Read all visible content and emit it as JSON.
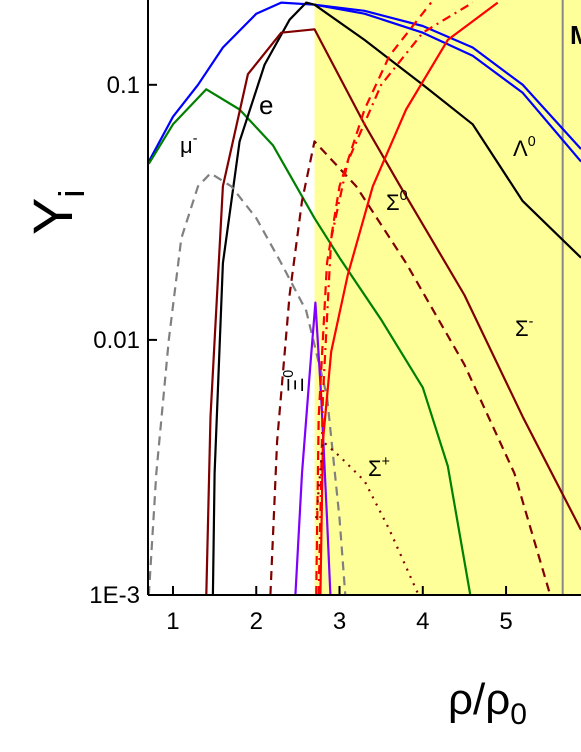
{
  "chart_data": {
    "type": "line",
    "log_y": true,
    "xlabel": "ρ/ρ",
    "xlabel_sub": "0",
    "ylabel": "Y",
    "ylabel_sub": "i",
    "xlim": [
      0.7,
      5.9
    ],
    "ylim": [
      0.001,
      0.215
    ],
    "xticks": [
      1,
      2,
      3,
      4,
      5
    ],
    "yticks": [
      0.1,
      0.01,
      {
        "value": 0.001,
        "label": "1E-3"
      }
    ],
    "shade_x": 2.7,
    "shade_color": "#ffff99",
    "vline_x": 5.68,
    "vline_color": "#888888",
    "series": [
      {
        "color": "#0000ff",
        "dash": "solid",
        "x": [
          0.71,
          1.0,
          1.3,
          1.6,
          2.0,
          2.3,
          2.7,
          3.3,
          4.0,
          4.6,
          5.2,
          5.9
        ],
        "values": [
          0.05,
          0.075,
          0.1,
          0.14,
          0.19,
          0.21,
          0.206,
          0.195,
          0.17,
          0.14,
          0.1,
          0.056
        ]
      },
      {
        "color": "#0000ff",
        "dash": "solid",
        "x": [
          2.7,
          3.3,
          4.0,
          4.6,
          5.2,
          5.9
        ],
        "values": [
          0.206,
          0.19,
          0.16,
          0.13,
          0.093,
          0.05
        ]
      },
      {
        "color": "#008000",
        "dash": "solid",
        "x": [
          0.71,
          1.0,
          1.4,
          1.8,
          2.2,
          2.7,
          3.0,
          3.5,
          4.0,
          4.3,
          4.57
        ],
        "values": [
          0.049,
          0.07,
          0.096,
          0.08,
          0.058,
          0.03,
          0.021,
          0.012,
          0.0065,
          0.0032,
          0.001
        ]
      },
      {
        "color": "#000000",
        "dash": "solid",
        "x": [
          1.48,
          1.5,
          1.6,
          1.8,
          2.1,
          2.4,
          2.6,
          2.7,
          3.3,
          4.0,
          4.6,
          5.2,
          5.9
        ],
        "values": [
          0.001,
          0.003,
          0.02,
          0.06,
          0.12,
          0.18,
          0.21,
          0.206,
          0.15,
          0.1,
          0.07,
          0.035,
          0.021
        ]
      },
      {
        "color": "#800000",
        "dash": "solid",
        "x": [
          1.4,
          1.45,
          1.6,
          1.9,
          2.3,
          2.7,
          3.3,
          3.73,
          4.5,
          5.2,
          5.9
        ],
        "values": [
          0.001,
          0.005,
          0.04,
          0.11,
          0.16,
          0.165,
          0.07,
          0.04,
          0.015,
          0.005,
          0.0018
        ]
      },
      {
        "color": "#800000",
        "dash": "dashed",
        "x": [
          2.17,
          2.25,
          2.4,
          2.55,
          2.7,
          3.2,
          3.8,
          4.5,
          5.1,
          5.53
        ],
        "values": [
          0.001,
          0.004,
          0.015,
          0.035,
          0.06,
          0.04,
          0.02,
          0.008,
          0.003,
          0.001
        ]
      },
      {
        "color": "#808080",
        "dash": "dashed",
        "x": [
          0.71,
          0.8,
          0.95,
          1.1,
          1.3,
          1.45,
          1.7,
          2.0,
          2.3,
          2.6,
          2.85,
          3.0,
          3.07
        ],
        "values": [
          0.001,
          0.003,
          0.01,
          0.025,
          0.04,
          0.045,
          0.04,
          0.03,
          0.02,
          0.013,
          0.006,
          0.002,
          0.001
        ]
      },
      {
        "color": "#8000ff",
        "dash": "solid",
        "x": [
          2.47,
          2.55,
          2.65,
          2.71,
          2.78,
          2.85,
          2.89
        ],
        "values": [
          0.001,
          0.003,
          0.008,
          0.014,
          0.006,
          0.002,
          0.001
        ]
      },
      {
        "color": "#ff0000",
        "dash": "solid",
        "x": [
          2.77,
          2.8,
          2.9,
          3.1,
          3.4,
          3.8,
          4.3,
          4.9
        ],
        "values": [
          0.001,
          0.004,
          0.009,
          0.018,
          0.04,
          0.08,
          0.15,
          0.21
        ]
      },
      {
        "color": "#ff0000",
        "dash": "dashed",
        "x": [
          2.72,
          2.75,
          2.85,
          3.0,
          3.3,
          3.6,
          4.1
        ],
        "values": [
          0.001,
          0.005,
          0.02,
          0.04,
          0.08,
          0.13,
          0.21
        ]
      },
      {
        "color": "#ff0000",
        "dash": "dashdot",
        "x": [
          2.75,
          2.8,
          2.9,
          3.1,
          3.5,
          4.0,
          4.6
        ],
        "values": [
          0.001,
          0.006,
          0.025,
          0.05,
          0.1,
          0.16,
          0.21
        ]
      },
      {
        "color": "#800000",
        "dash": "dotted",
        "x": [
          2.72,
          2.8,
          3.0,
          3.3,
          3.6,
          3.95
        ],
        "values": [
          0.002,
          0.004,
          0.0035,
          0.0028,
          0.0018,
          0.001
        ]
      }
    ],
    "annotations": [
      {
        "text": "e"
      },
      {
        "text": "μ",
        "sup": "-"
      },
      {
        "text": "Λ",
        "sup": "0"
      },
      {
        "text": "Σ",
        "sup": "0"
      },
      {
        "text": "Σ",
        "sup": "-"
      },
      {
        "text": "Σ",
        "sup": "+"
      },
      {
        "text": "Ξ",
        "sup": "0"
      },
      {
        "text": "M"
      }
    ]
  }
}
